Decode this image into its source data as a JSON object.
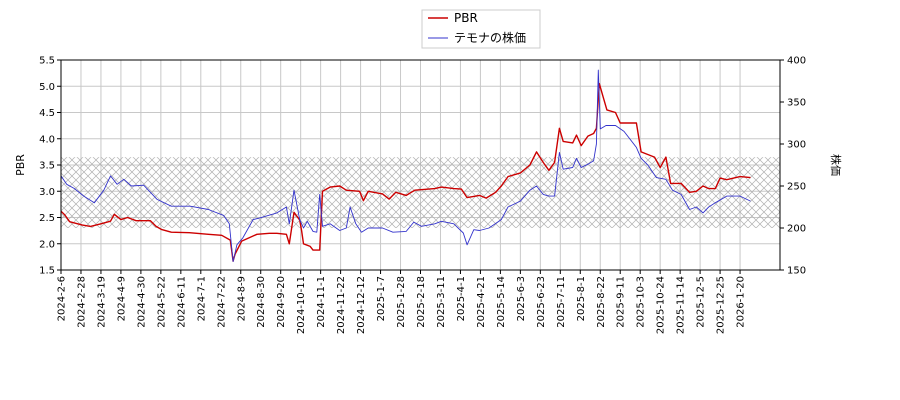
{
  "chart_data": {
    "type": "line",
    "legend": {
      "position": "top-center",
      "entries": [
        "PBR",
        "テモナの株価"
      ]
    },
    "left_axis": {
      "label": "PBR",
      "range": [
        1.5,
        5.5
      ],
      "ticks": [
        "1.5",
        "2.0",
        "2.5",
        "3.0",
        "3.5",
        "4.0",
        "4.5",
        "5.0",
        "5.5"
      ]
    },
    "right_axis": {
      "label": "株価",
      "range": [
        150,
        400
      ],
      "ticks": [
        "150",
        "200",
        "250",
        "300",
        "350",
        "400"
      ]
    },
    "x_ticks": [
      "2024-2-6",
      "2024-2-28",
      "2024-3-19",
      "2024-4-9",
      "2024-4-30",
      "2024-5-22",
      "2024-6-11",
      "2024-7-1",
      "2024-7-22",
      "2024-8-9",
      "2024-8-30",
      "2024-9-20",
      "2024-10-11",
      "2024-11-1",
      "2024-11-22",
      "2024-12-12",
      "2025-1-7",
      "2025-1-28",
      "2025-2-18",
      "2025-3-11",
      "2025-4-1",
      "2025-4-21",
      "2025-5-14",
      "2025-6-3",
      "2025-6-23",
      "2025-7-11",
      "2025-8-1",
      "2025-8-22",
      "2025-9-11",
      "2025-10-3",
      "2025-10-24",
      "2025-11-14",
      "2025-12-5",
      "2025-12-25",
      "2026-1-20"
    ],
    "grid": true,
    "shaded_band": {
      "axis": "left",
      "range": [
        2.3,
        3.65
      ],
      "pattern": "crosshatch"
    },
    "series": [
      {
        "name": "PBR",
        "axis": "left",
        "color": "#cc0000",
        "points": [
          [
            "2024-02-06",
            2.62
          ],
          [
            "2024-02-10",
            2.55
          ],
          [
            "2024-02-15",
            2.42
          ],
          [
            "2024-02-28",
            2.36
          ],
          [
            "2024-03-08",
            2.33
          ],
          [
            "2024-03-19",
            2.38
          ],
          [
            "2024-03-29",
            2.43
          ],
          [
            "2024-04-02",
            2.56
          ],
          [
            "2024-04-09",
            2.46
          ],
          [
            "2024-04-16",
            2.5
          ],
          [
            "2024-04-25",
            2.44
          ],
          [
            "2024-05-10",
            2.44
          ],
          [
            "2024-05-16",
            2.33
          ],
          [
            "2024-05-22",
            2.27
          ],
          [
            "2024-06-01",
            2.22
          ],
          [
            "2024-06-20",
            2.21
          ],
          [
            "2024-07-10",
            2.18
          ],
          [
            "2024-07-24",
            2.16
          ],
          [
            "2024-08-02",
            2.07
          ],
          [
            "2024-08-05",
            1.67
          ],
          [
            "2024-08-07",
            1.8
          ],
          [
            "2024-08-14",
            2.05
          ],
          [
            "2024-08-30",
            2.18
          ],
          [
            "2024-09-12",
            2.2
          ],
          [
            "2024-09-20",
            2.2
          ],
          [
            "2024-09-30",
            2.18
          ],
          [
            "2024-10-03",
            2.0
          ],
          [
            "2024-10-08",
            2.6
          ],
          [
            "2024-10-14",
            2.45
          ],
          [
            "2024-10-16",
            2.25
          ],
          [
            "2024-10-18",
            2.0
          ],
          [
            "2024-10-25",
            1.95
          ],
          [
            "2024-10-28",
            1.88
          ],
          [
            "2024-11-04",
            1.88
          ],
          [
            "2024-11-07",
            3.0
          ],
          [
            "2024-11-15",
            3.08
          ],
          [
            "2024-11-25",
            3.1
          ],
          [
            "2024-12-02",
            3.02
          ],
          [
            "2024-12-16",
            3.0
          ],
          [
            "2024-12-20",
            2.82
          ],
          [
            "2024-12-25",
            3.0
          ],
          [
            "2025-01-09",
            2.95
          ],
          [
            "2025-01-16",
            2.85
          ],
          [
            "2025-01-23",
            2.98
          ],
          [
            "2025-02-03",
            2.92
          ],
          [
            "2025-02-12",
            3.02
          ],
          [
            "2025-03-05",
            3.05
          ],
          [
            "2025-03-12",
            3.08
          ],
          [
            "2025-03-25",
            3.05
          ],
          [
            "2025-04-02",
            3.04
          ],
          [
            "2025-04-08",
            2.88
          ],
          [
            "2025-04-21",
            2.92
          ],
          [
            "2025-04-28",
            2.87
          ],
          [
            "2025-05-08",
            2.98
          ],
          [
            "2025-05-14",
            3.1
          ],
          [
            "2025-05-21",
            3.28
          ],
          [
            "2025-06-03",
            3.35
          ],
          [
            "2025-06-13",
            3.5
          ],
          [
            "2025-06-20",
            3.75
          ],
          [
            "2025-06-27",
            3.55
          ],
          [
            "2025-07-03",
            3.4
          ],
          [
            "2025-07-09",
            3.55
          ],
          [
            "2025-07-14",
            4.2
          ],
          [
            "2025-07-18",
            3.95
          ],
          [
            "2025-07-28",
            3.92
          ],
          [
            "2025-08-01",
            4.07
          ],
          [
            "2025-08-06",
            3.87
          ],
          [
            "2025-08-13",
            4.05
          ],
          [
            "2025-08-19",
            4.1
          ],
          [
            "2025-08-22",
            4.2
          ],
          [
            "2025-08-25",
            5.05
          ],
          [
            "2025-08-29",
            4.8
          ],
          [
            "2025-09-02",
            4.55
          ],
          [
            "2025-09-11",
            4.5
          ],
          [
            "2025-09-16",
            4.3
          ],
          [
            "2025-10-03",
            4.3
          ],
          [
            "2025-10-08",
            3.75
          ],
          [
            "2025-10-22",
            3.65
          ],
          [
            "2025-10-28",
            3.45
          ],
          [
            "2025-11-03",
            3.65
          ],
          [
            "2025-11-08",
            3.15
          ],
          [
            "2025-11-19",
            3.15
          ],
          [
            "2025-11-28",
            2.98
          ],
          [
            "2025-12-05",
            3.0
          ],
          [
            "2025-12-12",
            3.1
          ],
          [
            "2025-12-18",
            3.05
          ],
          [
            "2025-12-25",
            3.05
          ],
          [
            "2025-12-30",
            3.25
          ],
          [
            "2026-01-06",
            3.22
          ],
          [
            "2026-01-20",
            3.28
          ],
          [
            "2026-01-31",
            3.26
          ]
        ]
      },
      {
        "name": "テモナの株価",
        "axis": "right",
        "color": "#3333cc",
        "points": [
          [
            "2024-02-06",
            262
          ],
          [
            "2024-02-12",
            252
          ],
          [
            "2024-02-20",
            247
          ],
          [
            "2024-03-01",
            238
          ],
          [
            "2024-03-12",
            230
          ],
          [
            "2024-03-22",
            245
          ],
          [
            "2024-03-29",
            262
          ],
          [
            "2024-04-05",
            252
          ],
          [
            "2024-04-12",
            258
          ],
          [
            "2024-04-20",
            250
          ],
          [
            "2024-05-03",
            251
          ],
          [
            "2024-05-17",
            234
          ],
          [
            "2024-06-01",
            226
          ],
          [
            "2024-06-21",
            226
          ],
          [
            "2024-07-10",
            222
          ],
          [
            "2024-07-26",
            215
          ],
          [
            "2024-08-01",
            205
          ],
          [
            "2024-08-05",
            160
          ],
          [
            "2024-08-09",
            180
          ],
          [
            "2024-08-15",
            188
          ],
          [
            "2024-08-26",
            210
          ],
          [
            "2024-09-02",
            212
          ],
          [
            "2024-09-20",
            218
          ],
          [
            "2024-09-30",
            225
          ],
          [
            "2024-10-03",
            205
          ],
          [
            "2024-10-08",
            245
          ],
          [
            "2024-10-14",
            210
          ],
          [
            "2024-10-18",
            200
          ],
          [
            "2024-10-22",
            208
          ],
          [
            "2024-10-28",
            196
          ],
          [
            "2024-11-01",
            195
          ],
          [
            "2024-11-04",
            240
          ],
          [
            "2024-11-07",
            202
          ],
          [
            "2024-11-15",
            205
          ],
          [
            "2024-11-25",
            197
          ],
          [
            "2024-12-02",
            200
          ],
          [
            "2024-12-06",
            225
          ],
          [
            "2024-12-12",
            205
          ],
          [
            "2024-12-18",
            195
          ],
          [
            "2024-12-25",
            200
          ],
          [
            "2025-01-09",
            200
          ],
          [
            "2025-01-20",
            195
          ],
          [
            "2025-02-03",
            196
          ],
          [
            "2025-02-11",
            207
          ],
          [
            "2025-02-19",
            202
          ],
          [
            "2025-03-05",
            205
          ],
          [
            "2025-03-12",
            208
          ],
          [
            "2025-03-25",
            205
          ],
          [
            "2025-04-04",
            194
          ],
          [
            "2025-04-08",
            180
          ],
          [
            "2025-04-15",
            198
          ],
          [
            "2025-04-21",
            197
          ],
          [
            "2025-05-01",
            200
          ],
          [
            "2025-05-14",
            210
          ],
          [
            "2025-05-21",
            225
          ],
          [
            "2025-06-03",
            232
          ],
          [
            "2025-06-13",
            245
          ],
          [
            "2025-06-20",
            250
          ],
          [
            "2025-06-27",
            240
          ],
          [
            "2025-07-03",
            238
          ],
          [
            "2025-07-09",
            238
          ],
          [
            "2025-07-14",
            290
          ],
          [
            "2025-07-18",
            270
          ],
          [
            "2025-07-28",
            272
          ],
          [
            "2025-08-01",
            283
          ],
          [
            "2025-08-06",
            272
          ],
          [
            "2025-08-13",
            276
          ],
          [
            "2025-08-19",
            280
          ],
          [
            "2025-08-22",
            300
          ],
          [
            "2025-08-24",
            388
          ],
          [
            "2025-08-26",
            318
          ],
          [
            "2025-09-01",
            322
          ],
          [
            "2025-09-11",
            322
          ],
          [
            "2025-09-20",
            315
          ],
          [
            "2025-10-03",
            296
          ],
          [
            "2025-10-08",
            283
          ],
          [
            "2025-10-15",
            275
          ],
          [
            "2025-10-24",
            260
          ],
          [
            "2025-11-03",
            258
          ],
          [
            "2025-11-10",
            245
          ],
          [
            "2025-11-19",
            240
          ],
          [
            "2025-11-28",
            222
          ],
          [
            "2025-12-05",
            225
          ],
          [
            "2025-12-12",
            218
          ],
          [
            "2025-12-18",
            225
          ],
          [
            "2025-12-25",
            230
          ],
          [
            "2026-01-06",
            238
          ],
          [
            "2026-01-20",
            238
          ],
          [
            "2026-01-31",
            232
          ]
        ]
      }
    ]
  }
}
